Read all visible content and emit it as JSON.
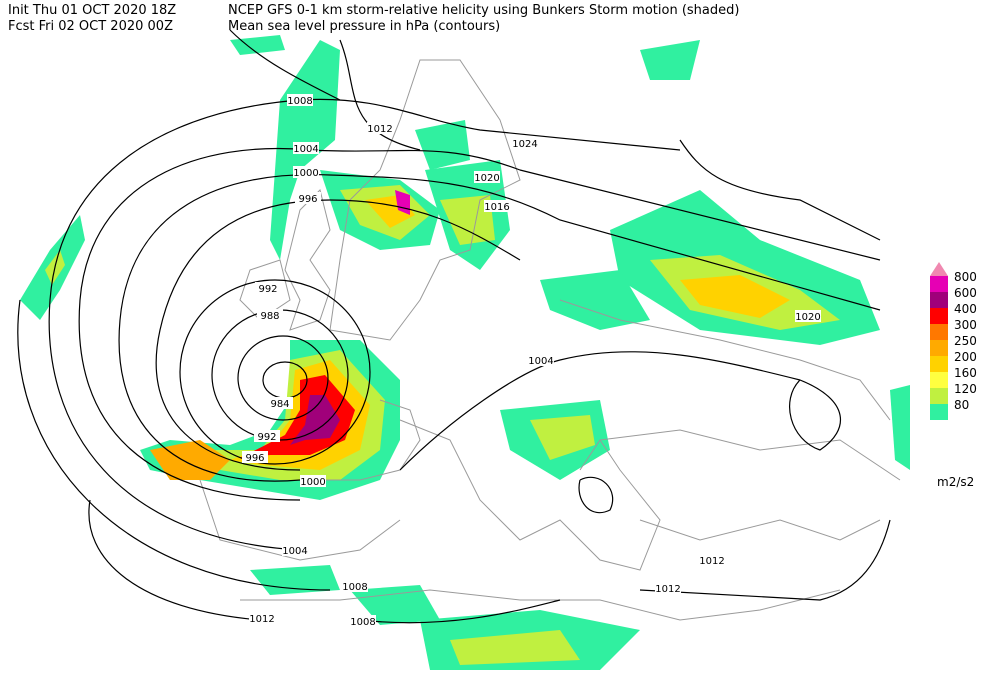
{
  "header": {
    "init": "Init  Thu 01 OCT 2020 18Z",
    "fcst": "Fcst Fri 02 OCT 2020 00Z",
    "title": "NCEP GFS 0-1 km storm-relative helicity using Bunkers Storm motion (shaded)",
    "subtitle": "Mean sea level pressure in hPa (contours)"
  },
  "contour_labels": [
    1008,
    1012,
    1024,
    1004,
    1000,
    1020,
    996,
    1016,
    992,
    988,
    1004,
    984,
    992,
    996,
    1000,
    1020,
    1004,
    1012,
    1008,
    1012,
    1012,
    1008
  ],
  "legend": {
    "top_color": "#f088b0",
    "levels": [
      {
        "value": 800,
        "color": "#e600b4"
      },
      {
        "value": 600,
        "color": "#a0007a"
      },
      {
        "value": 400,
        "color": "#ff0000"
      },
      {
        "value": 300,
        "color": "#ff7800"
      },
      {
        "value": 250,
        "color": "#ffaa00"
      },
      {
        "value": 200,
        "color": "#ffd200"
      },
      {
        "value": 160,
        "color": "#ffff40"
      },
      {
        "value": 120,
        "color": "#c0f040"
      },
      {
        "value": 80,
        "color": "#30f0a0"
      }
    ],
    "unit": "m2/s2"
  }
}
